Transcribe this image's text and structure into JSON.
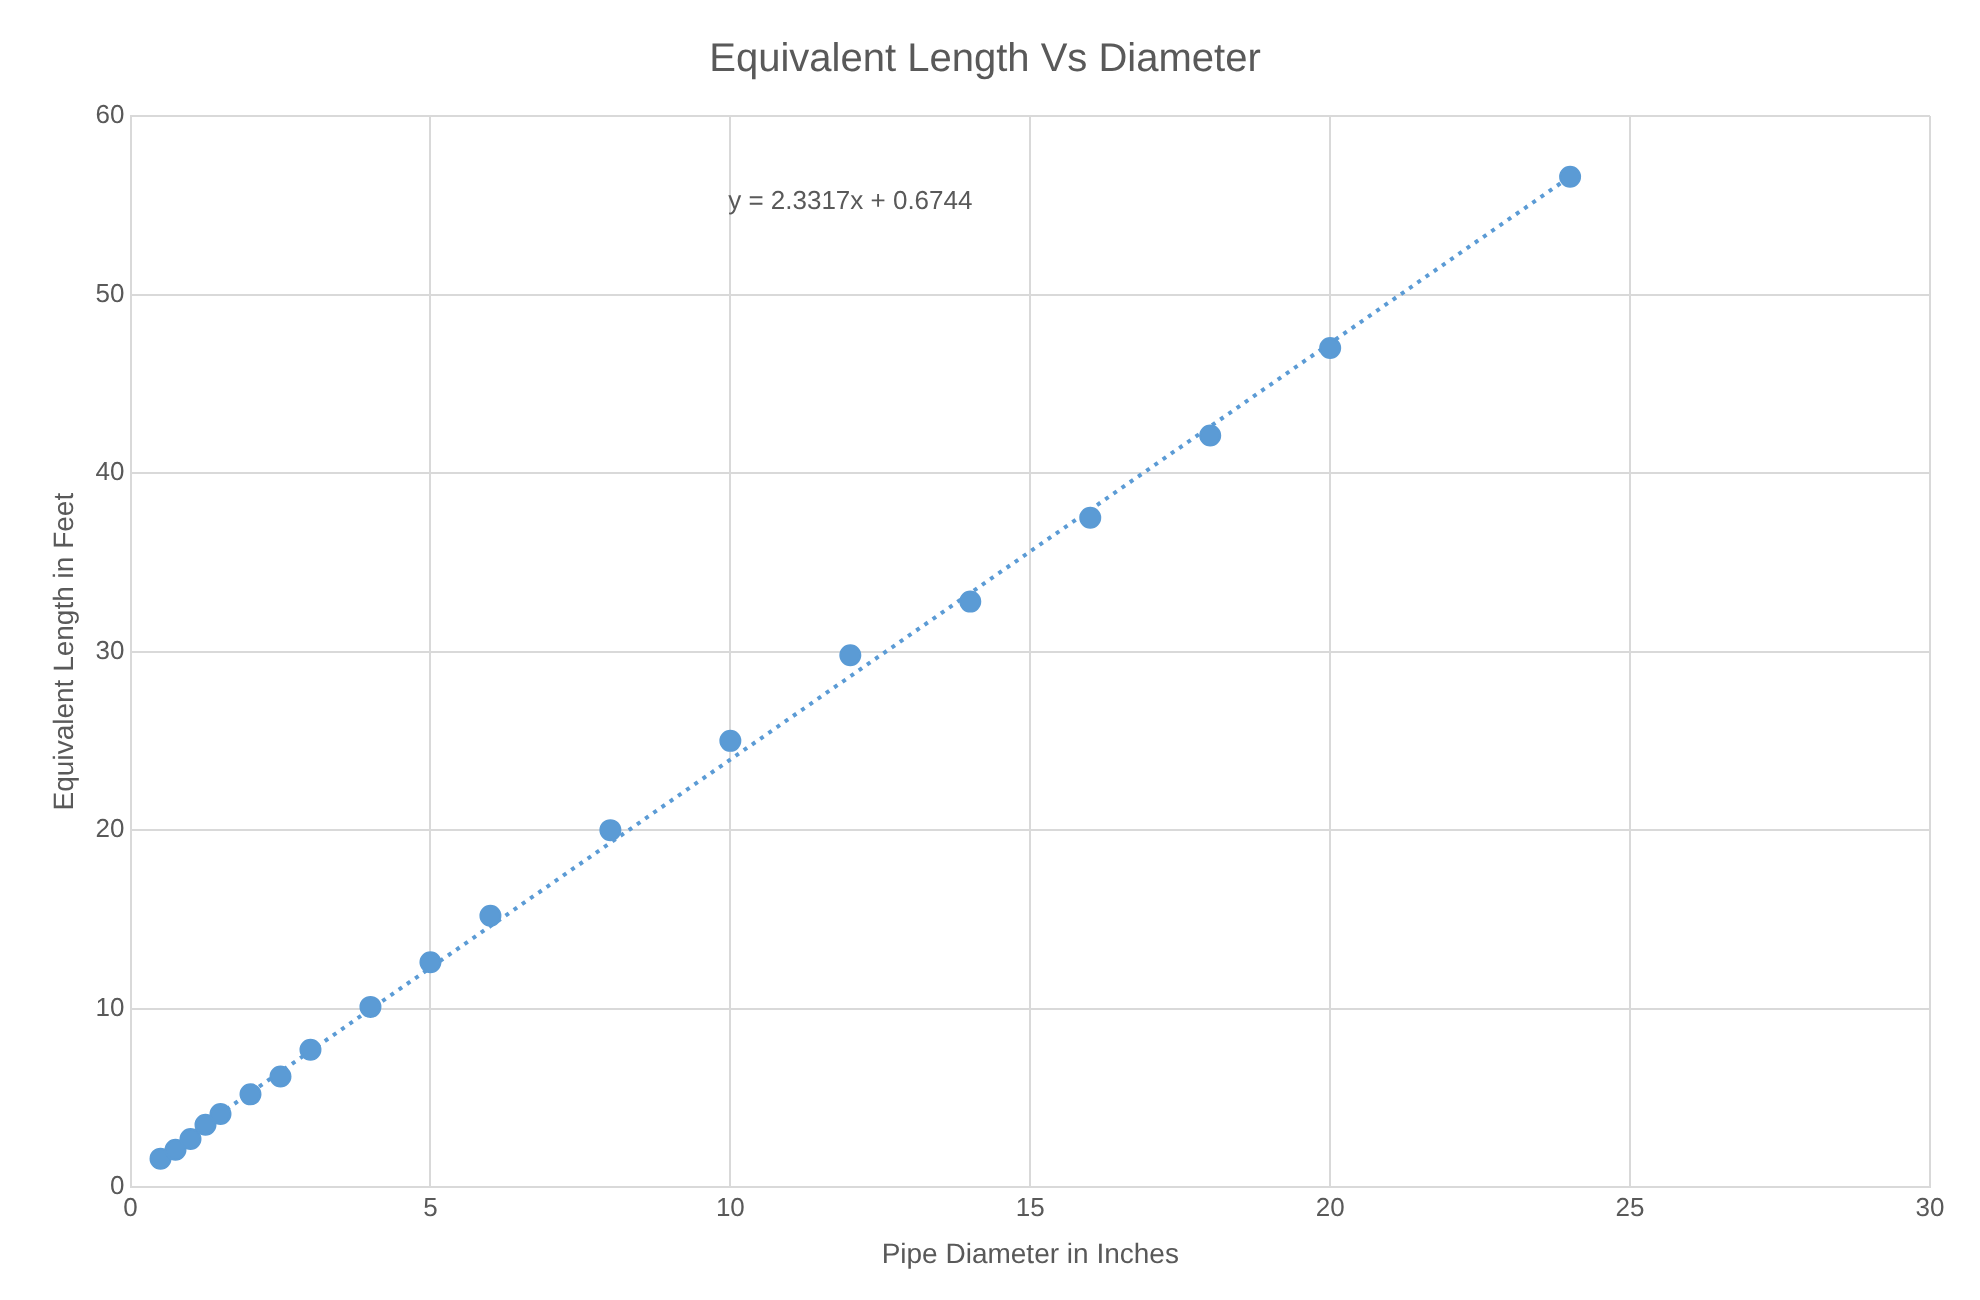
{
  "chart_data": {
    "type": "scatter",
    "title": "Equivalent Length Vs Diameter",
    "xlabel": "Pipe Diameter in Inches",
    "ylabel": "Equivalent Length in Feet",
    "series": [
      {
        "color": "#5b9bd5",
        "x": [
          0.5,
          0.75,
          1,
          1.25,
          1.5,
          2,
          2.5,
          3,
          4,
          5,
          6,
          8,
          10,
          12,
          14,
          16,
          18,
          20,
          24
        ],
        "values": [
          1.6,
          2.1,
          2.7,
          3.5,
          4.1,
          5.2,
          6.2,
          7.7,
          10.1,
          12.6,
          15.2,
          20,
          25,
          29.8,
          32.8,
          37.5,
          42.1,
          47,
          56.6
        ],
        "marker": "circle"
      },
      {
        "type": "line",
        "color": "#5b9bd5",
        "x": [
          0.5,
          24
        ],
        "values": [
          1.8,
          56.6
        ],
        "line_style": "dotted",
        "marker": "none"
      }
    ],
    "annotations": [
      "y = 2.3317x + 0.6744"
    ],
    "xlim": [
      0,
      30
    ],
    "xticks": [
      0,
      5,
      10,
      15,
      20,
      25,
      30
    ],
    "ylim": [
      0,
      60
    ],
    "yticks": [
      0,
      10,
      20,
      30,
      40,
      50,
      60
    ],
    "grid": true,
    "legend": false
  }
}
